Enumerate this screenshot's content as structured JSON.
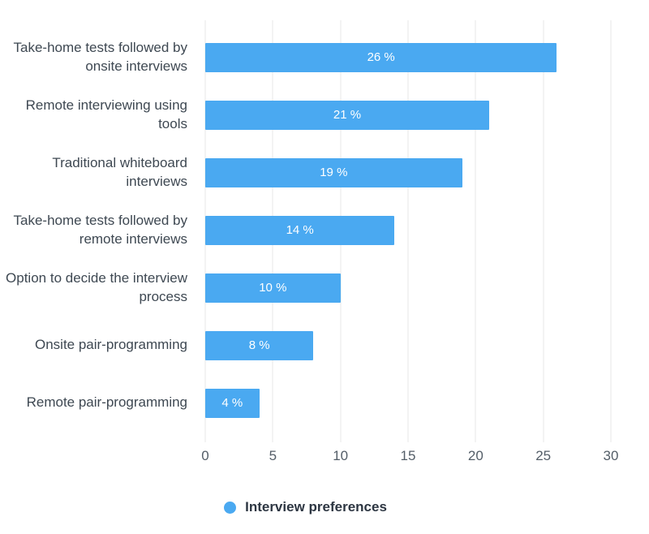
{
  "chart_data": {
    "type": "bar",
    "orientation": "horizontal",
    "title": "",
    "xlabel": "",
    "ylabel": "",
    "categories": [
      "Take-home tests followed by onsite interviews",
      "Remote interviewing using tools",
      "Traditional whiteboard interviews",
      "Take-home tests followed by remote interviews",
      "Option to decide the interview process",
      "Onsite pair-programming",
      "Remote pair-programming"
    ],
    "values": [
      26,
      21,
      19,
      14,
      10,
      8,
      4
    ],
    "value_labels": [
      "26 %",
      "21 %",
      "19 %",
      "14 %",
      "10 %",
      "8 %",
      "4 %"
    ],
    "x_ticks": [
      0,
      5,
      10,
      15,
      20,
      25,
      30
    ],
    "xlim": [
      0,
      30
    ],
    "grid": "vertical",
    "legend": "Interview preferences",
    "legend_position": "bottom",
    "bar_color": "#4AA9F1",
    "value_label_color": "#FFFFFF",
    "gridline_color": "#E7E7E7"
  }
}
